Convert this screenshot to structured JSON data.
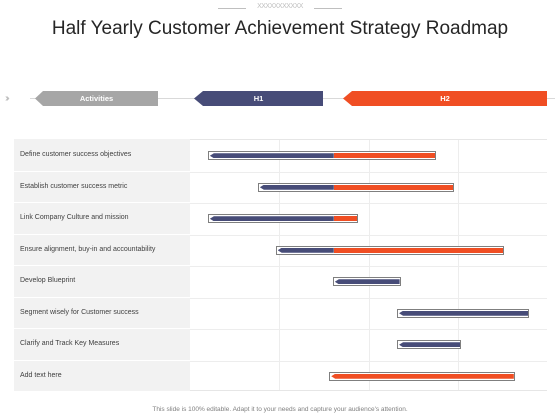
{
  "title": "Half Yearly Customer Achievement Strategy Roadmap",
  "header": {
    "activities_label": "Activities",
    "h1_label": "H1",
    "h2_label": "H2"
  },
  "colors": {
    "h1": "#474c78",
    "h2": "#f04e23",
    "activities": "#a6a6a6"
  },
  "rows": [
    {
      "label": "Define customer success objectives",
      "start": 0.05,
      "split": 0.4,
      "end": 0.69
    },
    {
      "label": "Establish customer success metric",
      "start": 0.19,
      "split": 0.4,
      "end": 0.74
    },
    {
      "label": "Link Company Culture and mission",
      "start": 0.05,
      "split": 0.4,
      "end": 0.47
    },
    {
      "label": "Ensure alignment, buy-in and accountability",
      "start": 0.24,
      "split": 0.4,
      "end": 0.88
    },
    {
      "label": "Develop  Blueprint",
      "start": 0.4,
      "split": 0.59,
      "end": 0.59
    },
    {
      "label": "Segment wisely for Customer success",
      "start": 0.58,
      "split": 0.95,
      "end": 0.95
    },
    {
      "label": "Clarify and Track Key Measures",
      "start": 0.58,
      "split": 0.76,
      "end": 0.76
    },
    {
      "label": "Add text here",
      "start": 0.39,
      "split": 0.39,
      "end": 0.91
    }
  ],
  "footer": "This slide is 100% editable. Adapt it to your needs and capture your audience's attention."
}
